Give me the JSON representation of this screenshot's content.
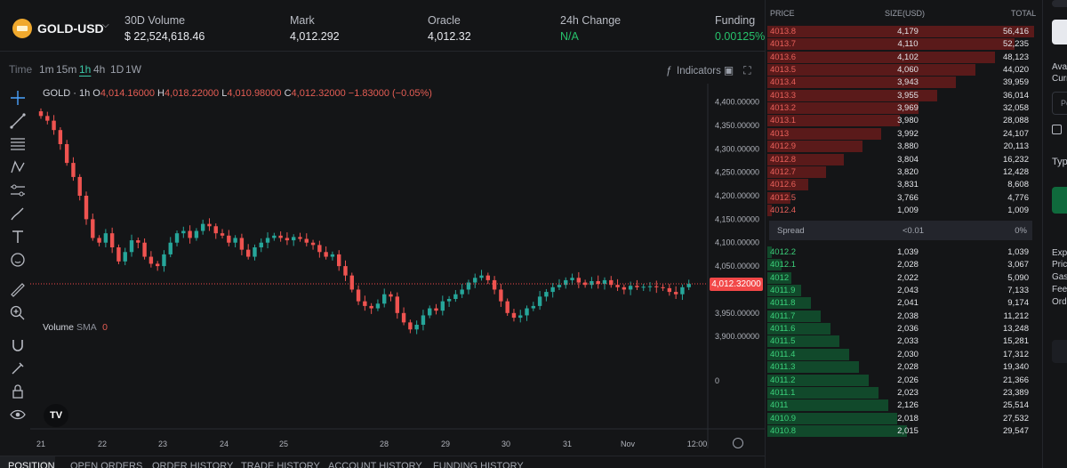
{
  "header": {
    "symbol": "GOLD-USD",
    "stats": [
      {
        "label": "30D Volume",
        "value": "$ 22,524,618.46"
      },
      {
        "label": "Mark",
        "value": "4,012.292"
      },
      {
        "label": "Oracle",
        "value": "4,012.32"
      },
      {
        "label": "24h Change",
        "value": "N/A"
      },
      {
        "label": "Funding",
        "value": "0.00125%"
      }
    ]
  },
  "toolbar": {
    "time_label": "Time",
    "intervals": [
      "1m",
      "15m",
      "1h",
      "4h",
      "1D",
      "1W"
    ],
    "active_interval": "1h",
    "indicators_label": "Indicators"
  },
  "chart_legend": {
    "symbol": "GOLD · 1h",
    "o": "4,014.16000",
    "h": "4,018.22000",
    "l": "4,010.98000",
    "c": "4,012.32000",
    "change": "−1.83000 (−0.05%)",
    "volume_label": "Volume",
    "volume_sma": "SMA",
    "volume_value": "0",
    "current_price_tag": "4,012.32000"
  },
  "chart_data": {
    "type": "candlestick",
    "symbol": "GOLD",
    "interval": "1h",
    "y_ticks": [
      4400,
      4350,
      4300,
      4250,
      4200,
      4150,
      4100,
      4050,
      3950,
      3900
    ],
    "y_tick_labels": [
      "4,400.00000",
      "4,350.00000",
      "4,300.00000",
      "4,250.00000",
      "4,200.00000",
      "4,150.00000",
      "4,100.00000",
      "4,050.00000",
      "3,950.00000",
      "3,900.00000"
    ],
    "volume_tick_label": "0",
    "x_tick_labels": [
      "21",
      "22",
      "23",
      "24",
      "25",
      "28",
      "29",
      "30",
      "31",
      "Nov",
      "12:00"
    ],
    "last_close": 4012.32,
    "ylim": [
      3870,
      4420
    ],
    "series": [
      4370,
      4360,
      4340,
      4310,
      4270,
      4240,
      4200,
      4150,
      4110,
      4100,
      4120,
      4090,
      4060,
      4080,
      4105,
      4100,
      4070,
      4055,
      4050,
      4075,
      4100,
      4120,
      4125,
      4110,
      4125,
      4140,
      4135,
      4120,
      4115,
      4100,
      4110,
      4085,
      4070,
      4090,
      4100,
      4110,
      4115,
      4110,
      4105,
      4112,
      4108,
      4100,
      4095,
      4080,
      4070,
      4075,
      4050,
      4030,
      4000,
      3975,
      3965,
      3960,
      3970,
      3990,
      3985,
      3950,
      3930,
      3915,
      3925,
      3945,
      3960,
      3955,
      3975,
      3980,
      3990,
      4000,
      4015,
      4025,
      4030,
      4020,
      4000,
      3975,
      3950,
      3940,
      3945,
      3960,
      3965,
      3985,
      3995,
      4005,
      4010,
      4020,
      4025,
      4015,
      4010,
      4018,
      4012,
      4020,
      4010,
      4005,
      4000,
      4008,
      4005,
      4006,
      4007,
      4005,
      4003,
      3995,
      3990,
      4005,
      4012
    ]
  },
  "orderbook": {
    "headers": {
      "price": "PRICE",
      "size": "SIZE(USD)",
      "total": "TOTAL"
    },
    "asks": [
      {
        "price": "4013.8",
        "size": "4,179",
        "total": "56,416",
        "depth": 1.0
      },
      {
        "price": "4013.7",
        "size": "4,110",
        "total": "52,235",
        "depth": 0.925
      },
      {
        "price": "4013.6",
        "size": "4,102",
        "total": "48,123",
        "depth": 0.853
      },
      {
        "price": "4013.5",
        "size": "4,060",
        "total": "44,020",
        "depth": 0.78
      },
      {
        "price": "4013.4",
        "size": "3,943",
        "total": "39,959",
        "depth": 0.708
      },
      {
        "price": "4013.3",
        "size": "3,955",
        "total": "36,014",
        "depth": 0.638
      },
      {
        "price": "4013.2",
        "size": "3,969",
        "total": "32,058",
        "depth": 0.568
      },
      {
        "price": "4013.1",
        "size": "3,980",
        "total": "28,088",
        "depth": 0.498
      },
      {
        "price": "4013",
        "size": "3,992",
        "total": "24,107",
        "depth": 0.427
      },
      {
        "price": "4012.9",
        "size": "3,880",
        "total": "20,113",
        "depth": 0.356
      },
      {
        "price": "4012.8",
        "size": "3,804",
        "total": "16,232",
        "depth": 0.288
      },
      {
        "price": "4012.7",
        "size": "3,820",
        "total": "12,428",
        "depth": 0.22
      },
      {
        "price": "4012.6",
        "size": "3,831",
        "total": "8,608",
        "depth": 0.153
      },
      {
        "price": "4012.5",
        "size": "3,766",
        "total": "4,776",
        "depth": 0.085
      },
      {
        "price": "4012.4",
        "size": "1,009",
        "total": "1,009",
        "depth": 0.018
      }
    ],
    "spread": {
      "label": "Spread",
      "value": "<0.01",
      "pct": "0%"
    },
    "bids": [
      {
        "price": "4012.2",
        "size": "1,039",
        "total": "1,039",
        "depth": 0.018
      },
      {
        "price": "4012.1",
        "size": "2,028",
        "total": "3,067",
        "depth": 0.054
      },
      {
        "price": "4012",
        "size": "2,022",
        "total": "5,090",
        "depth": 0.09
      },
      {
        "price": "4011.9",
        "size": "2,043",
        "total": "7,133",
        "depth": 0.126
      },
      {
        "price": "4011.8",
        "size": "2,041",
        "total": "9,174",
        "depth": 0.163
      },
      {
        "price": "4011.7",
        "size": "2,038",
        "total": "11,212",
        "depth": 0.199
      },
      {
        "price": "4011.6",
        "size": "2,036",
        "total": "13,248",
        "depth": 0.235
      },
      {
        "price": "4011.5",
        "size": "2,033",
        "total": "15,281",
        "depth": 0.271
      },
      {
        "price": "4011.4",
        "size": "2,030",
        "total": "17,312",
        "depth": 0.307
      },
      {
        "price": "4011.3",
        "size": "2,028",
        "total": "19,340",
        "depth": 0.343
      },
      {
        "price": "4011.2",
        "size": "2,026",
        "total": "21,366",
        "depth": 0.379
      },
      {
        "price": "4011.1",
        "size": "2,023",
        "total": "23,389",
        "depth": 0.415
      },
      {
        "price": "4011",
        "size": "2,126",
        "total": "25,514",
        "depth": 0.452
      },
      {
        "price": "4010.9",
        "size": "2,018",
        "total": "27,532",
        "depth": 0.488
      },
      {
        "price": "4010.8",
        "size": "2,015",
        "total": "29,547",
        "depth": 0.524
      }
    ]
  },
  "bottom_tabs": [
    "POSITION",
    "OPEN ORDERS",
    "ORDER HISTORY",
    "TRADE HISTORY",
    "ACCOUNT HISTORY",
    "FUNDING HISTORY"
  ],
  "right_panel": {
    "texts": [
      "Avai",
      "Curr",
      "Po",
      "Typ",
      "Exp",
      "Pric",
      "Gas",
      "Fee",
      "Ord"
    ]
  },
  "colors": {
    "ask": "#e8605a",
    "bid": "#3bd07a",
    "accent": "#3cc9a8",
    "up_candle": "#26a69a",
    "down_candle": "#ef5350"
  }
}
